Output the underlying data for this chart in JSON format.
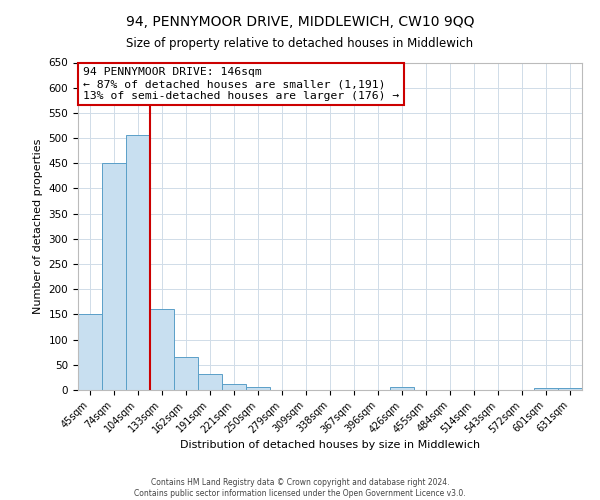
{
  "title": "94, PENNYMOOR DRIVE, MIDDLEWICH, CW10 9QQ",
  "subtitle": "Size of property relative to detached houses in Middlewich",
  "xlabel": "Distribution of detached houses by size in Middlewich",
  "ylabel": "Number of detached properties",
  "footer_line1": "Contains HM Land Registry data © Crown copyright and database right 2024.",
  "footer_line2": "Contains public sector information licensed under the Open Government Licence v3.0.",
  "annotation_title": "94 PENNYMOOR DRIVE: 146sqm",
  "annotation_line1": "← 87% of detached houses are smaller (1,191)",
  "annotation_line2": "13% of semi-detached houses are larger (176) →",
  "bar_color": "#c8dff0",
  "bar_edge_color": "#5a9fc8",
  "vline_color": "#cc0000",
  "annotation_box_edgecolor": "#cc0000",
  "grid_color": "#d0dce8",
  "background_color": "#ffffff",
  "categories": [
    "45sqm",
    "74sqm",
    "104sqm",
    "133sqm",
    "162sqm",
    "191sqm",
    "221sqm",
    "250sqm",
    "279sqm",
    "309sqm",
    "338sqm",
    "367sqm",
    "396sqm",
    "426sqm",
    "455sqm",
    "484sqm",
    "514sqm",
    "543sqm",
    "572sqm",
    "601sqm",
    "631sqm"
  ],
  "values": [
    150,
    450,
    507,
    160,
    65,
    32,
    12,
    5,
    0,
    0,
    0,
    0,
    0,
    5,
    0,
    0,
    0,
    0,
    0,
    3,
    3
  ],
  "ylim": [
    0,
    650
  ],
  "yticks": [
    0,
    50,
    100,
    150,
    200,
    250,
    300,
    350,
    400,
    450,
    500,
    550,
    600,
    650
  ],
  "vline_x": 2.5,
  "figsize": [
    6.0,
    5.0
  ],
  "dpi": 100
}
